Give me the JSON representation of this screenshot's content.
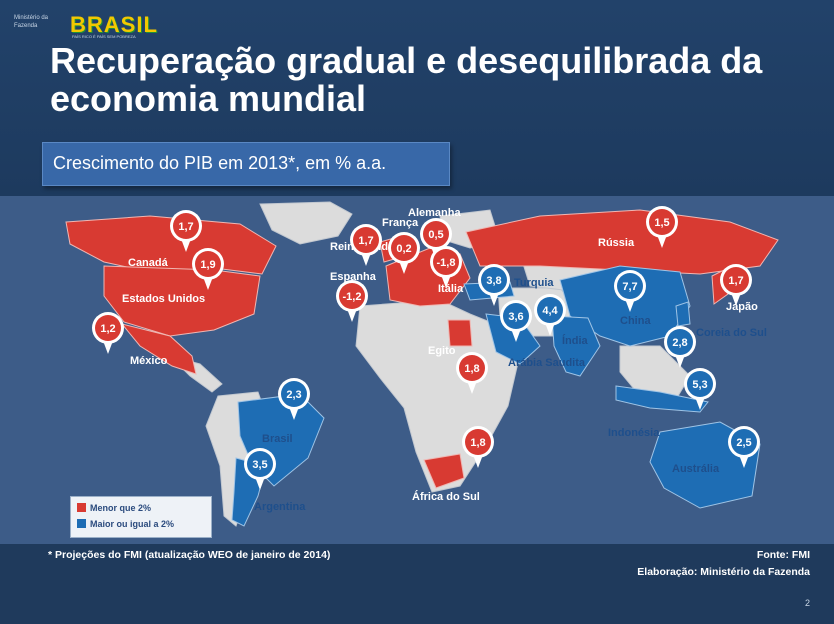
{
  "logo": {
    "ministry": "Ministério da Fazenda",
    "brand": "BRASIL",
    "tagline": "PAÍS RICO É PAÍS SEM POBREZA"
  },
  "title": "Recuperação gradual e desequilibrada da economia mundial",
  "subtitle": "Crescimento do PIB em 2013*, em % a.a.",
  "colors": {
    "below": "#d83a32",
    "above": "#1e6db4",
    "ocean": "#3d5c88",
    "land": "#dcdcdc"
  },
  "legend": [
    {
      "label": "Menor que 2%",
      "color": "#d83a32"
    },
    {
      "label": "Maior ou igual a 2%",
      "color": "#1e6db4"
    }
  ],
  "countries": [
    {
      "name": "Canadá",
      "value": "1,7",
      "group": "below"
    },
    {
      "name": "Estados Unidos",
      "value": "1,9",
      "group": "below"
    },
    {
      "name": "México",
      "value": "1,2",
      "group": "below"
    },
    {
      "name": "Reino Unido",
      "value": "1,7",
      "group": "below"
    },
    {
      "name": "França",
      "value": "0,2",
      "group": "below"
    },
    {
      "name": "Alemanha",
      "value": "0,5",
      "group": "below"
    },
    {
      "name": "Espanha",
      "value": "-1,2",
      "group": "below"
    },
    {
      "name": "Itália",
      "value": "-1,8",
      "group": "below"
    },
    {
      "name": "Rússia",
      "value": "1,5",
      "group": "below"
    },
    {
      "name": "Japão",
      "value": "1,7",
      "group": "below"
    },
    {
      "name": "Egito",
      "value": "1,8",
      "group": "below"
    },
    {
      "name": "África do Sul",
      "value": "1,8",
      "group": "below"
    },
    {
      "name": "Turquia",
      "value": "3,8",
      "group": "above"
    },
    {
      "name": "Arábia Saudita",
      "value": "3,6",
      "group": "above"
    },
    {
      "name": "Índia",
      "value": "4,4",
      "group": "above"
    },
    {
      "name": "China",
      "value": "7,7",
      "group": "above"
    },
    {
      "name": "Coreia do Sul",
      "value": "2,8",
      "group": "above"
    },
    {
      "name": "Indonésia",
      "value": "5,3",
      "group": "above"
    },
    {
      "name": "Austrália",
      "value": "2,5",
      "group": "above"
    },
    {
      "name": "Brasil",
      "value": "2,3",
      "group": "above"
    },
    {
      "name": "Argentina",
      "value": "3,5",
      "group": "above"
    }
  ],
  "footnote": "* Projeções do FMI (atualização WEO de janeiro de 2014)",
  "source": "Fonte: FMI",
  "credit": "Elaboração: Ministério da Fazenda",
  "page_number": "2"
}
